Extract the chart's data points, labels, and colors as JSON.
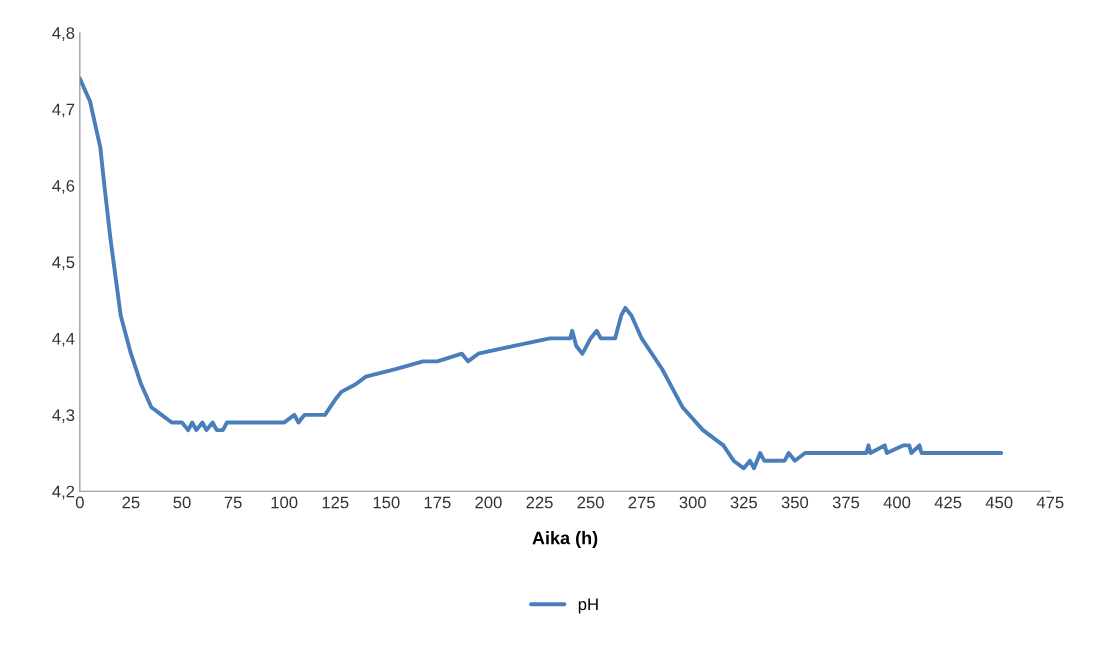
{
  "chart_data": {
    "type": "line",
    "xlabel": "Aika (h)",
    "x": [
      0,
      5,
      10,
      12,
      15,
      18,
      20,
      25,
      30,
      35,
      40,
      45,
      50,
      53,
      55,
      57,
      60,
      62,
      65,
      67,
      70,
      72,
      100,
      105,
      107,
      110,
      120,
      125,
      128,
      135,
      140,
      155,
      168,
      175,
      187,
      190,
      195,
      212,
      230,
      240,
      241,
      243,
      246,
      248,
      250,
      253,
      255,
      262,
      265,
      267,
      270,
      275,
      285,
      295,
      305,
      315,
      320,
      325,
      328,
      330,
      333,
      335,
      345,
      347,
      350,
      355,
      385,
      386,
      387,
      394,
      395,
      403,
      406,
      407,
      411,
      412,
      451
    ],
    "series": [
      {
        "name": "pH",
        "color": "#4a7ebb",
        "values": [
          4.74,
          4.71,
          4.65,
          4.6,
          4.53,
          4.47,
          4.43,
          4.38,
          4.34,
          4.31,
          4.3,
          4.29,
          4.29,
          4.28,
          4.29,
          4.28,
          4.29,
          4.28,
          4.29,
          4.28,
          4.28,
          4.29,
          4.29,
          4.3,
          4.29,
          4.3,
          4.3,
          4.32,
          4.33,
          4.34,
          4.35,
          4.36,
          4.37,
          4.37,
          4.38,
          4.37,
          4.38,
          4.39,
          4.4,
          4.4,
          4.41,
          4.39,
          4.38,
          4.39,
          4.4,
          4.41,
          4.4,
          4.4,
          4.43,
          4.44,
          4.43,
          4.4,
          4.36,
          4.31,
          4.28,
          4.26,
          4.24,
          4.23,
          4.24,
          4.23,
          4.25,
          4.24,
          4.24,
          4.25,
          4.24,
          4.25,
          4.25,
          4.26,
          4.25,
          4.26,
          4.25,
          4.26,
          4.26,
          4.25,
          4.26,
          4.25,
          4.25
        ]
      }
    ],
    "xlim": [
      0,
      475
    ],
    "xticks": [
      0,
      25,
      50,
      75,
      100,
      125,
      150,
      175,
      200,
      225,
      250,
      275,
      300,
      325,
      350,
      375,
      400,
      425,
      450,
      475
    ],
    "ylim": [
      4.2,
      4.8
    ],
    "yticks": [
      {
        "value": 4.2,
        "label": "4,2"
      },
      {
        "value": 4.3,
        "label": "4,3"
      },
      {
        "value": 4.4,
        "label": "4,4"
      },
      {
        "value": 4.5,
        "label": "4,5"
      },
      {
        "value": 4.6,
        "label": "4,6"
      },
      {
        "value": 4.7,
        "label": "4,7"
      },
      {
        "value": 4.8,
        "label": "4,8"
      }
    ],
    "legend": "bottom",
    "grid": false,
    "line_style": "solid",
    "marker": "none"
  }
}
